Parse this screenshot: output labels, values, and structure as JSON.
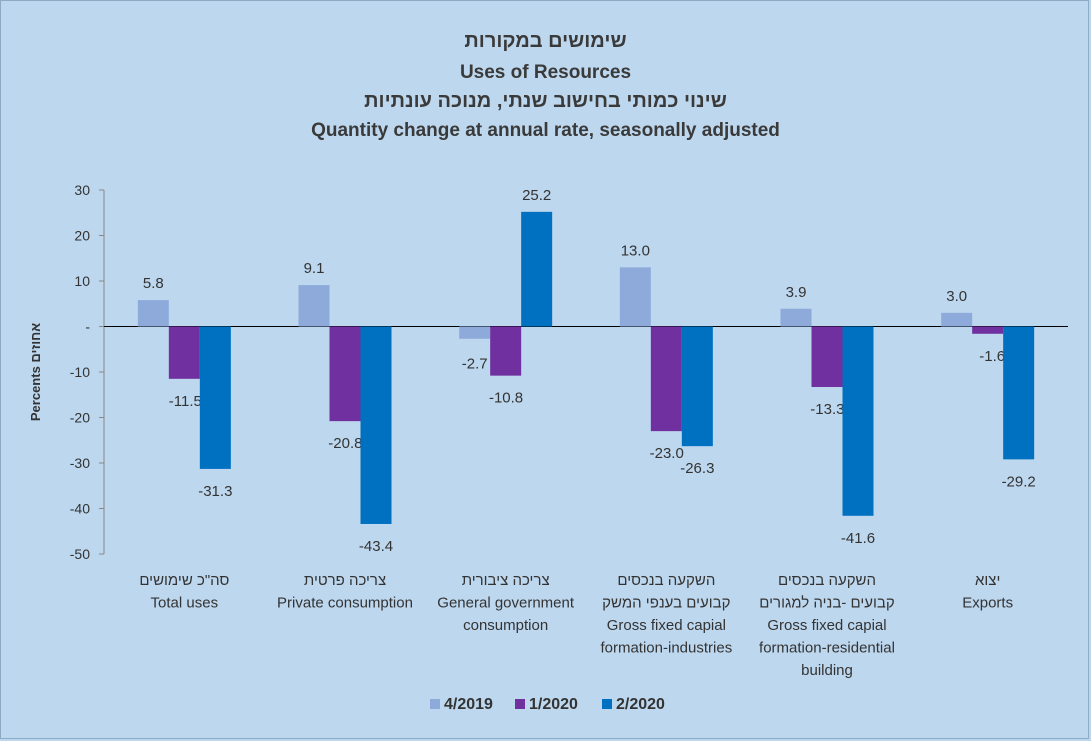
{
  "chart_data": {
    "type": "bar",
    "title_he": "שימושים במקורות",
    "title_en": "Uses of Resources",
    "subtitle_he": "שינוי כמותי בחישוב שנתי, מנוכה עונתיות",
    "subtitle_en": "Quantity change at annual rate, seasonally adjusted",
    "ylabel": "Percents אחוזים",
    "ylim": [
      -50,
      30
    ],
    "yticks": [
      30,
      20,
      10,
      0,
      -10,
      -20,
      -30,
      -40,
      -50
    ],
    "ytick_labels": [
      "30",
      "20",
      "10",
      "-",
      "-10",
      "-20",
      "-30",
      "-40",
      "-50"
    ],
    "categories": [
      [
        "סה\"כ שימושים",
        "Total uses"
      ],
      [
        "צריכה פרטית",
        "Private consumption"
      ],
      [
        "צריכה ציבורית",
        "General government",
        "consumption"
      ],
      [
        "השקעה בנכסים",
        "קבועים בענפי המשק",
        "Gross fixed capial",
        "formation-industries"
      ],
      [
        "השקעה בנכסים",
        "קבועים -בניה למגורים",
        "Gross fixed capial",
        "formation-residential",
        "building"
      ],
      [
        "יצוא",
        "Exports"
      ]
    ],
    "series": [
      {
        "name": "4/2019",
        "color": "#8eaadb",
        "values": [
          5.8,
          9.1,
          -2.7,
          13.0,
          3.9,
          3.0
        ],
        "labels": [
          "5.8",
          "9.1",
          "-2.7",
          "13.0",
          "3.9",
          "3.0"
        ]
      },
      {
        "name": "1/2020",
        "color": "#7030a0",
        "values": [
          -11.5,
          -20.8,
          -10.8,
          -23.0,
          -13.3,
          -1.6
        ],
        "labels": [
          "-11.5",
          "-20.8",
          "-10.8",
          "-23.0",
          "-13.3",
          "-1.6"
        ]
      },
      {
        "name": "2/2020",
        "color": "#0070c0",
        "values": [
          -31.3,
          -43.4,
          25.2,
          -26.3,
          -41.6,
          -29.2
        ],
        "labels": [
          "-31.3",
          "-43.4",
          "25.2",
          "-26.3",
          "-41.6",
          "-29.2"
        ]
      }
    ],
    "legend_position": "bottom",
    "grid": false
  }
}
